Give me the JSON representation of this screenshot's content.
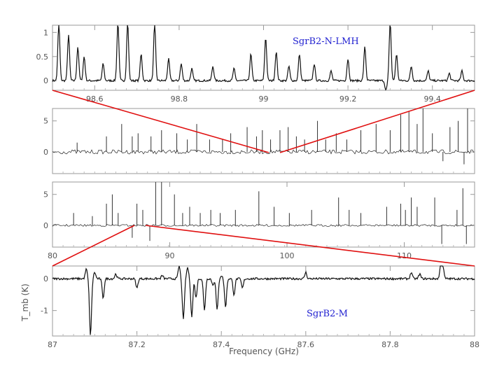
{
  "chart_data": [
    {
      "type": "line",
      "title": "SgrB2-N-LMH",
      "xlabel": "",
      "ylabel": "",
      "xlim": [
        98.5,
        99.5
      ],
      "ylim": [
        -0.2,
        1.15
      ],
      "x_ticks": [
        98.6,
        98.8,
        99,
        99.2,
        99.4
      ],
      "x_tick_labels": [
        "98.6",
        "98.8",
        "99",
        "99.2",
        "99.4"
      ],
      "y_ticks": [
        0,
        0.5,
        1
      ],
      "y_tick_labels": [
        "0",
        "0.5",
        "1"
      ],
      "peaks": [
        {
          "x": 98.515,
          "y": 1.2
        },
        {
          "x": 98.538,
          "y": 0.95
        },
        {
          "x": 98.56,
          "y": 0.7
        },
        {
          "x": 98.575,
          "y": 0.5
        },
        {
          "x": 98.62,
          "y": 0.35
        },
        {
          "x": 98.655,
          "y": 1.2
        },
        {
          "x": 98.678,
          "y": 1.2
        },
        {
          "x": 98.71,
          "y": 0.55
        },
        {
          "x": 98.742,
          "y": 1.2
        },
        {
          "x": 98.775,
          "y": 0.45
        },
        {
          "x": 98.805,
          "y": 0.35
        },
        {
          "x": 98.83,
          "y": 0.25
        },
        {
          "x": 98.88,
          "y": 0.3
        },
        {
          "x": 98.93,
          "y": 0.25
        },
        {
          "x": 98.97,
          "y": 0.55
        },
        {
          "x": 99.005,
          "y": 0.9
        },
        {
          "x": 99.03,
          "y": 0.6
        },
        {
          "x": 99.06,
          "y": 0.3
        },
        {
          "x": 99.085,
          "y": 0.55
        },
        {
          "x": 99.12,
          "y": 0.35
        },
        {
          "x": 99.16,
          "y": 0.2
        },
        {
          "x": 99.2,
          "y": 0.45
        },
        {
          "x": 99.24,
          "y": 0.7
        },
        {
          "x": 99.3,
          "y": 1.2
        },
        {
          "x": 99.315,
          "y": 0.55
        },
        {
          "x": 99.29,
          "y": -0.2
        },
        {
          "x": 99.35,
          "y": 0.3
        },
        {
          "x": 99.39,
          "y": 0.2
        },
        {
          "x": 99.44,
          "y": 0.15
        },
        {
          "x": 99.47,
          "y": 0.2
        }
      ]
    },
    {
      "type": "line",
      "title": "",
      "xlim": [
        80,
        116
      ],
      "ylim": [
        -3.5,
        7
      ],
      "x_ticks": [],
      "y_ticks": [
        0,
        5
      ],
      "y_tick_labels": [
        "0",
        "5"
      ],
      "peaks": [
        {
          "x": 82.1,
          "y": 1.5
        },
        {
          "x": 84.6,
          "y": 2.5
        },
        {
          "x": 85.9,
          "y": 4.5
        },
        {
          "x": 86.8,
          "y": 2.5
        },
        {
          "x": 87.3,
          "y": 3.0
        },
        {
          "x": 88.4,
          "y": 2.5
        },
        {
          "x": 89.3,
          "y": 3.5
        },
        {
          "x": 90.6,
          "y": 3.0
        },
        {
          "x": 91.5,
          "y": 2.0
        },
        {
          "x": 92.3,
          "y": 4.5
        },
        {
          "x": 93.4,
          "y": 2.0
        },
        {
          "x": 94.5,
          "y": 2.0
        },
        {
          "x": 95.2,
          "y": 3.0
        },
        {
          "x": 96.6,
          "y": 4.0
        },
        {
          "x": 97.4,
          "y": 2.5
        },
        {
          "x": 97.9,
          "y": 3.5
        },
        {
          "x": 98.6,
          "y": 2.0
        },
        {
          "x": 99.4,
          "y": 3.5
        },
        {
          "x": 100.1,
          "y": 4.0
        },
        {
          "x": 100.8,
          "y": 2.5
        },
        {
          "x": 101.5,
          "y": 2.0
        },
        {
          "x": 102.6,
          "y": 5.0
        },
        {
          "x": 103.3,
          "y": 2.0
        },
        {
          "x": 104.2,
          "y": 3.0
        },
        {
          "x": 105.1,
          "y": 2.0
        },
        {
          "x": 106.3,
          "y": 3.5
        },
        {
          "x": 107.6,
          "y": 4.5
        },
        {
          "x": 108.8,
          "y": 3.5
        },
        {
          "x": 109.7,
          "y": 6.0
        },
        {
          "x": 110.4,
          "y": 6.5
        },
        {
          "x": 111.1,
          "y": 4.5
        },
        {
          "x": 111.6,
          "y": 7.0
        },
        {
          "x": 112.4,
          "y": 3.0
        },
        {
          "x": 113.3,
          "y": -1.5
        },
        {
          "x": 113.9,
          "y": 4.0
        },
        {
          "x": 114.6,
          "y": 5.0
        },
        {
          "x": 115.4,
          "y": 7.0
        },
        {
          "x": 115.1,
          "y": -2.0
        }
      ]
    },
    {
      "type": "line",
      "title": "",
      "xlim": [
        80,
        116
      ],
      "ylim": [
        -3.5,
        7
      ],
      "x_ticks": [
        80,
        90,
        100,
        110
      ],
      "x_tick_labels": [
        "80",
        "90",
        "100",
        "110"
      ],
      "y_ticks": [
        0,
        5
      ],
      "y_tick_labels": [
        "0",
        "5"
      ],
      "peaks": [
        {
          "x": 81.8,
          "y": 2.0
        },
        {
          "x": 83.4,
          "y": 1.5
        },
        {
          "x": 84.6,
          "y": 3.5
        },
        {
          "x": 85.1,
          "y": 5.0
        },
        {
          "x": 85.6,
          "y": 2.0
        },
        {
          "x": 86.8,
          "y": -2.0
        },
        {
          "x": 87.2,
          "y": 3.5
        },
        {
          "x": 87.7,
          "y": 2.5
        },
        {
          "x": 88.3,
          "y": -2.5
        },
        {
          "x": 88.8,
          "y": 7.0
        },
        {
          "x": 89.3,
          "y": 7.0
        },
        {
          "x": 90.4,
          "y": 5.0
        },
        {
          "x": 91.1,
          "y": 2.0
        },
        {
          "x": 91.7,
          "y": 3.0
        },
        {
          "x": 92.6,
          "y": 2.0
        },
        {
          "x": 93.5,
          "y": 2.5
        },
        {
          "x": 94.3,
          "y": 2.0
        },
        {
          "x": 95.6,
          "y": 2.5
        },
        {
          "x": 97.6,
          "y": 5.5
        },
        {
          "x": 98.9,
          "y": 3.0
        },
        {
          "x": 100.2,
          "y": 2.0
        },
        {
          "x": 102.1,
          "y": 2.5
        },
        {
          "x": 104.4,
          "y": 4.5
        },
        {
          "x": 105.3,
          "y": 2.5
        },
        {
          "x": 106.3,
          "y": 2.0
        },
        {
          "x": 108.5,
          "y": 3.0
        },
        {
          "x": 109.7,
          "y": 3.5
        },
        {
          "x": 110.1,
          "y": 2.5
        },
        {
          "x": 110.6,
          "y": 4.5
        },
        {
          "x": 111.1,
          "y": 3.0
        },
        {
          "x": 112.6,
          "y": 4.5
        },
        {
          "x": 113.2,
          "y": -3.0
        },
        {
          "x": 114.5,
          "y": 2.5
        },
        {
          "x": 115.0,
          "y": 6.0
        },
        {
          "x": 115.3,
          "y": -3.0
        }
      ]
    },
    {
      "type": "line",
      "title": "SgrB2-M",
      "xlabel": "Frequency (GHz)",
      "ylabel": "T_mb (K)",
      "xlim": [
        87,
        88
      ],
      "ylim": [
        -1.8,
        0.4
      ],
      "x_ticks": [
        87,
        87.2,
        87.4,
        87.6,
        87.8,
        88
      ],
      "x_tick_labels": [
        "87",
        "87.2",
        "87.4",
        "87.6",
        "87.8",
        "88"
      ],
      "y_ticks": [
        -1,
        0
      ],
      "y_tick_labels": [
        "-1",
        "0"
      ],
      "features": [
        {
          "x": 87.08,
          "y": 0.3
        },
        {
          "x": 87.09,
          "y": -1.8
        },
        {
          "x": 87.1,
          "y": 0.2
        },
        {
          "x": 87.12,
          "y": -0.6
        },
        {
          "x": 87.15,
          "y": 0.15
        },
        {
          "x": 87.2,
          "y": -0.3
        },
        {
          "x": 87.26,
          "y": 0.1
        },
        {
          "x": 87.3,
          "y": 0.4
        },
        {
          "x": 87.31,
          "y": -1.3
        },
        {
          "x": 87.32,
          "y": 0.35
        },
        {
          "x": 87.33,
          "y": -1.2
        },
        {
          "x": 87.34,
          "y": -0.6
        },
        {
          "x": 87.36,
          "y": -1.0
        },
        {
          "x": 87.38,
          "y": -0.2
        },
        {
          "x": 87.39,
          "y": -1.0
        },
        {
          "x": 87.4,
          "y": 0.1
        },
        {
          "x": 87.41,
          "y": -0.9
        },
        {
          "x": 87.43,
          "y": -0.5
        },
        {
          "x": 87.45,
          "y": -0.3
        },
        {
          "x": 87.6,
          "y": 0.2
        },
        {
          "x": 87.85,
          "y": 0.2
        },
        {
          "x": 87.87,
          "y": 0.15
        },
        {
          "x": 87.92,
          "y": 0.45
        },
        {
          "x": 87.925,
          "y": 0.35
        }
      ]
    }
  ],
  "zoom_lines_color": "#e01010",
  "label_color": "#1f1fd0"
}
